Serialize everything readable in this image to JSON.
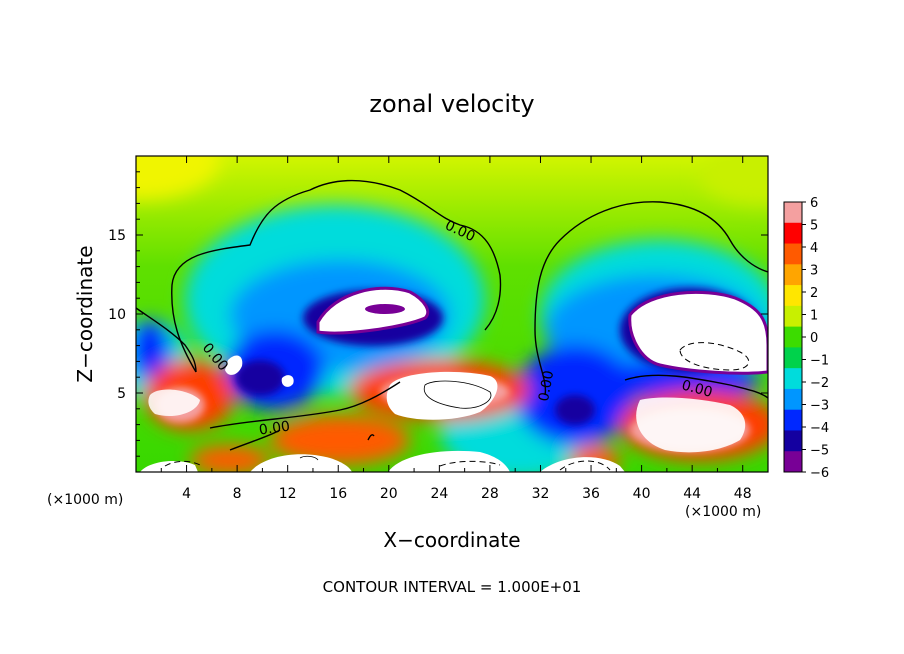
{
  "chart_data": {
    "type": "heatmap",
    "title": "zonal velocity",
    "xlabel": "X−coordinate",
    "ylabel": "Z−coordinate",
    "x_unit_left": "(×1000 m)",
    "x_unit_right": "(×1000 m)",
    "note": "CONTOUR INTERVAL = 1.000E+01",
    "xlim": [
      0,
      50
    ],
    "ylim": [
      0,
      20
    ],
    "x_ticks": [
      4,
      8,
      12,
      16,
      20,
      24,
      28,
      32,
      36,
      40,
      44,
      48
    ],
    "y_ticks": [
      5,
      10,
      15
    ],
    "colorbar": {
      "range": [
        -6,
        6
      ],
      "ticks": [
        6,
        5,
        4,
        3,
        2,
        1,
        0,
        -1,
        -2,
        -3,
        -4,
        -5,
        -6
      ],
      "tick_labels": [
        "6",
        "5",
        "4",
        "3",
        "2",
        "1",
        "0",
        "−1",
        "−2",
        "−3",
        "−4",
        "−5",
        "−6"
      ],
      "colors": [
        "#f4a0a0",
        "#ff0000",
        "#ff5a00",
        "#ffa500",
        "#ffe600",
        "#c8f000",
        "#3cdc00",
        "#00d24b",
        "#00dcdc",
        "#0096ff",
        "#0028ff",
        "#1400a0",
        "#780096"
      ]
    },
    "contour_labels": [
      {
        "text": "0.00",
        "x": 25.5,
        "y": 15.0,
        "rot": 25
      },
      {
        "text": "0.00",
        "x": 6.0,
        "y": 7.1,
        "rot": 50
      },
      {
        "text": "0.00",
        "x": 32.8,
        "y": 5.4,
        "rot": -80
      },
      {
        "text": "0.00",
        "x": 44.3,
        "y": 5.0,
        "rot": 15
      },
      {
        "text": "0.00",
        "x": 11.0,
        "y": 2.5,
        "rot": -8
      }
    ]
  }
}
